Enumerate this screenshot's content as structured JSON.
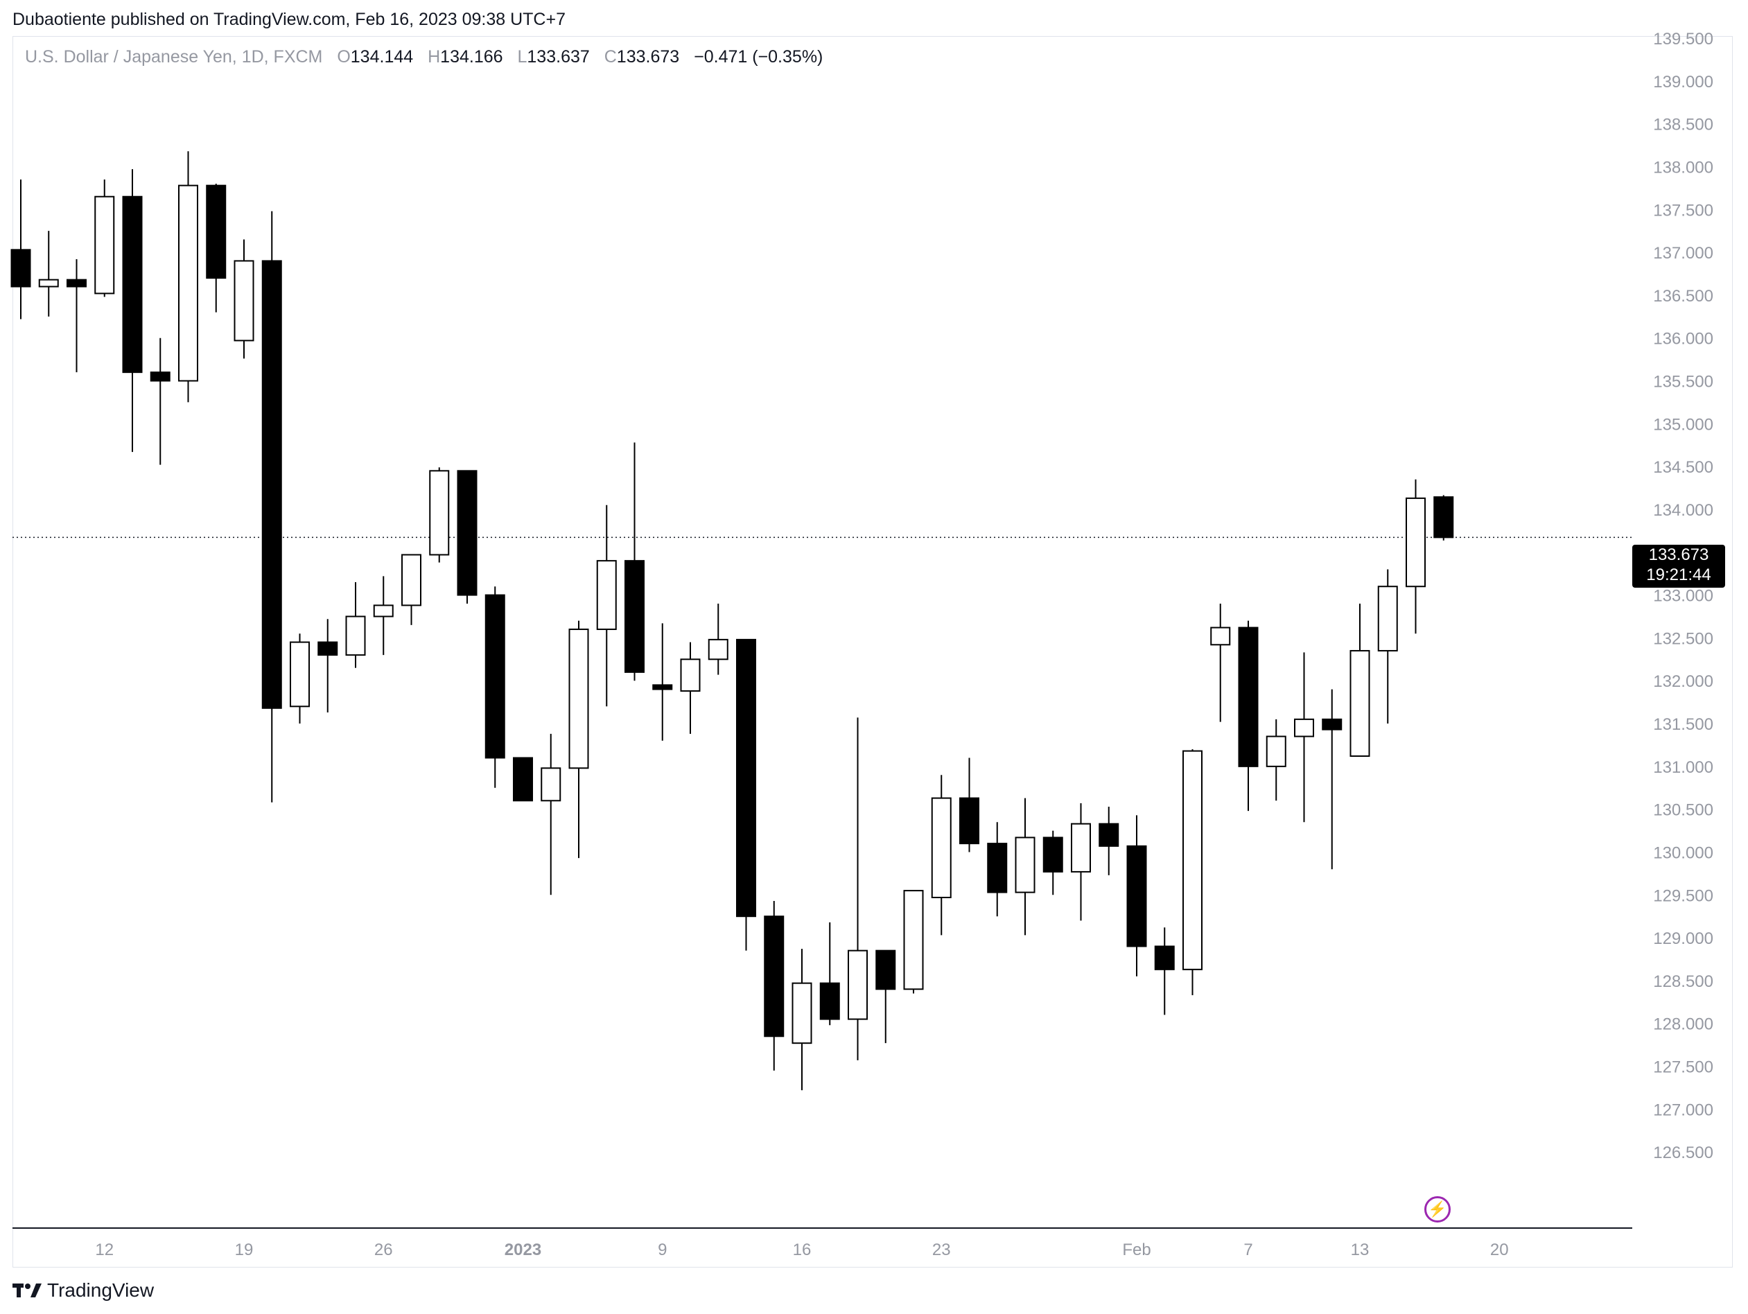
{
  "header": {
    "published": "Dubaotiente published on TradingView.com, Feb 16, 2023 09:38 UTC+7"
  },
  "symbol": {
    "name": "U.S. Dollar / Japanese Yen, 1D, FXCM",
    "open_label": "O",
    "open": "134.144",
    "high_label": "H",
    "high": "134.166",
    "low_label": "L",
    "low": "133.637",
    "close_label": "C",
    "close": "133.673",
    "change": "−0.471 (−0.35%)"
  },
  "price_tag": {
    "price": "133.673",
    "countdown": "19:21:44"
  },
  "footer": {
    "brand": "TradingView"
  },
  "colors": {
    "up_fill": "#ffffff",
    "down_fill": "#000000",
    "wick": "#000000",
    "grid_text": "#9598a1",
    "accent": "#9c27b0"
  },
  "icons": {
    "alert": "lightning-icon",
    "logo": "tradingview-logo-icon"
  },
  "chart_data": {
    "type": "candlestick",
    "ylim": [
      126.0,
      139.5
    ],
    "y_ticks": [
      "139.500",
      "139.000",
      "138.500",
      "138.000",
      "137.500",
      "137.000",
      "136.500",
      "136.000",
      "135.500",
      "135.000",
      "134.500",
      "134.000",
      "133.500",
      "133.000",
      "132.500",
      "132.000",
      "131.500",
      "131.000",
      "130.500",
      "130.000",
      "129.500",
      "129.000",
      "128.500",
      "128.000",
      "127.500",
      "127.000",
      "126.500"
    ],
    "x_ticks": [
      {
        "label": "12",
        "index": 3,
        "bold": false
      },
      {
        "label": "19",
        "index": 8,
        "bold": false
      },
      {
        "label": "26",
        "index": 13,
        "bold": false
      },
      {
        "label": "2023",
        "index": 18,
        "bold": true
      },
      {
        "label": "9",
        "index": 23,
        "bold": false
      },
      {
        "label": "16",
        "index": 28,
        "bold": false
      },
      {
        "label": "23",
        "index": 33,
        "bold": false
      },
      {
        "label": "Feb",
        "index": 40,
        "bold": false
      },
      {
        "label": "7",
        "index": 44,
        "bold": false
      },
      {
        "label": "13",
        "index": 48,
        "bold": false
      },
      {
        "label": "20",
        "index": 53,
        "bold": false
      }
    ],
    "last_price": 133.673,
    "candles": [
      {
        "o": 137.03,
        "h": 137.85,
        "l": 136.22,
        "c": 136.6
      },
      {
        "o": 136.6,
        "h": 137.25,
        "l": 136.25,
        "c": 136.68
      },
      {
        "o": 136.68,
        "h": 136.92,
        "l": 135.6,
        "c": 136.6
      },
      {
        "o": 136.52,
        "h": 137.85,
        "l": 136.48,
        "c": 137.65
      },
      {
        "o": 137.65,
        "h": 137.97,
        "l": 134.67,
        "c": 135.6
      },
      {
        "o": 135.6,
        "h": 136.0,
        "l": 134.52,
        "c": 135.5
      },
      {
        "o": 135.5,
        "h": 138.18,
        "l": 135.25,
        "c": 137.78
      },
      {
        "o": 137.78,
        "h": 137.8,
        "l": 136.3,
        "c": 136.7
      },
      {
        "o": 135.97,
        "h": 137.15,
        "l": 135.76,
        "c": 136.9
      },
      {
        "o": 136.9,
        "h": 137.48,
        "l": 130.58,
        "c": 131.68
      },
      {
        "o": 131.7,
        "h": 132.55,
        "l": 131.5,
        "c": 132.45
      },
      {
        "o": 132.45,
        "h": 132.72,
        "l": 131.63,
        "c": 132.3
      },
      {
        "o": 132.3,
        "h": 133.15,
        "l": 132.15,
        "c": 132.75
      },
      {
        "o": 132.75,
        "h": 133.22,
        "l": 132.3,
        "c": 132.88
      },
      {
        "o": 132.88,
        "h": 133.45,
        "l": 132.65,
        "c": 133.47
      },
      {
        "o": 133.47,
        "h": 134.49,
        "l": 133.38,
        "c": 134.45
      },
      {
        "o": 134.45,
        "h": 134.45,
        "l": 132.9,
        "c": 133.0
      },
      {
        "o": 133.0,
        "h": 133.1,
        "l": 130.75,
        "c": 131.1
      },
      {
        "o": 131.1,
        "h": 131.1,
        "l": 130.6,
        "c": 130.6
      },
      {
        "o": 130.6,
        "h": 131.38,
        "l": 129.5,
        "c": 130.98
      },
      {
        "o": 130.98,
        "h": 132.7,
        "l": 129.93,
        "c": 132.6
      },
      {
        "o": 132.6,
        "h": 134.05,
        "l": 131.7,
        "c": 133.4
      },
      {
        "o": 133.4,
        "h": 134.78,
        "l": 132.0,
        "c": 132.1
      },
      {
        "o": 131.95,
        "h": 132.67,
        "l": 131.3,
        "c": 131.9
      },
      {
        "o": 131.88,
        "h": 132.45,
        "l": 131.38,
        "c": 132.25
      },
      {
        "o": 132.25,
        "h": 132.9,
        "l": 132.07,
        "c": 132.48
      },
      {
        "o": 132.48,
        "h": 132.48,
        "l": 128.85,
        "c": 129.25
      },
      {
        "o": 129.25,
        "h": 129.43,
        "l": 127.45,
        "c": 127.85
      },
      {
        "o": 127.77,
        "h": 128.87,
        "l": 127.22,
        "c": 128.47
      },
      {
        "o": 128.47,
        "h": 129.18,
        "l": 127.98,
        "c": 128.05
      },
      {
        "o": 128.05,
        "h": 131.57,
        "l": 127.57,
        "c": 128.85
      },
      {
        "o": 128.85,
        "h": 128.85,
        "l": 127.77,
        "c": 128.4
      },
      {
        "o": 128.4,
        "h": 129.55,
        "l": 128.35,
        "c": 129.55
      },
      {
        "o": 129.47,
        "h": 130.9,
        "l": 129.03,
        "c": 130.63
      },
      {
        "o": 130.63,
        "h": 131.1,
        "l": 130.0,
        "c": 130.1
      },
      {
        "o": 130.1,
        "h": 130.35,
        "l": 129.25,
        "c": 129.53
      },
      {
        "o": 129.53,
        "h": 130.63,
        "l": 129.03,
        "c": 130.17
      },
      {
        "o": 130.17,
        "h": 130.25,
        "l": 129.5,
        "c": 129.77
      },
      {
        "o": 129.77,
        "h": 130.57,
        "l": 129.2,
        "c": 130.33
      },
      {
        "o": 130.33,
        "h": 130.53,
        "l": 129.73,
        "c": 130.07
      },
      {
        "o": 130.07,
        "h": 130.43,
        "l": 128.55,
        "c": 128.9
      },
      {
        "o": 128.9,
        "h": 129.12,
        "l": 128.1,
        "c": 128.63
      },
      {
        "o": 128.63,
        "h": 131.2,
        "l": 128.33,
        "c": 131.18
      },
      {
        "o": 132.42,
        "h": 132.9,
        "l": 131.52,
        "c": 132.62
      },
      {
        "o": 132.62,
        "h": 132.7,
        "l": 130.48,
        "c": 131.0
      },
      {
        "o": 131.0,
        "h": 131.55,
        "l": 130.6,
        "c": 131.35
      },
      {
        "o": 131.35,
        "h": 132.33,
        "l": 130.35,
        "c": 131.55
      },
      {
        "o": 131.55,
        "h": 131.9,
        "l": 129.8,
        "c": 131.43
      },
      {
        "o": 131.12,
        "h": 132.9,
        "l": 131.12,
        "c": 132.35
      },
      {
        "o": 132.35,
        "h": 133.3,
        "l": 131.5,
        "c": 133.1
      },
      {
        "o": 133.1,
        "h": 134.35,
        "l": 132.55,
        "c": 134.13
      },
      {
        "o": 134.144,
        "h": 134.166,
        "l": 133.637,
        "c": 133.673
      }
    ]
  }
}
